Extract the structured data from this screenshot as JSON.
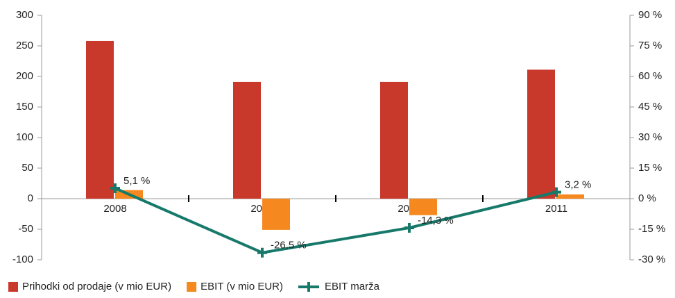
{
  "chart_data": {
    "type": "bar",
    "categories": [
      "2008",
      "2009",
      "2010",
      "2011"
    ],
    "series": [
      {
        "name": "Prihodki od prodaje (v mio EUR)",
        "color": "#c8392b",
        "values": [
          258,
          191,
          191,
          211
        ]
      },
      {
        "name": "EBIT (v mio EUR)",
        "color": "#f5891f",
        "values": [
          14,
          -51,
          -27,
          7
        ]
      },
      {
        "name": "EBIT marža",
        "color": "#17796a",
        "type": "line",
        "axis": "y2",
        "values": [
          5.1,
          -26.5,
          -14.3,
          3.2
        ],
        "value_labels": [
          "5,1 %",
          "-26,5 %",
          "-14,3 %",
          "3,2 %"
        ]
      }
    ],
    "ylim": [
      -100,
      300
    ],
    "yticks": [
      -100,
      -50,
      0,
      50,
      100,
      150,
      200,
      250,
      300
    ],
    "y2lim": [
      -30,
      90
    ],
    "y2ticks": [
      {
        "value": -30,
        "label": "-30 %"
      },
      {
        "value": -15,
        "label": "-15 %"
      },
      {
        "value": 0,
        "label": "0 %"
      },
      {
        "value": 15,
        "label": "15 %"
      },
      {
        "value": 30,
        "label": "30 %"
      },
      {
        "value": 45,
        "label": "45 %"
      },
      {
        "value": 60,
        "label": "60 %"
      },
      {
        "value": 75,
        "label": "75 %"
      },
      {
        "value": 90,
        "label": "90 %"
      }
    ],
    "legend": "bottom",
    "grid": false
  }
}
